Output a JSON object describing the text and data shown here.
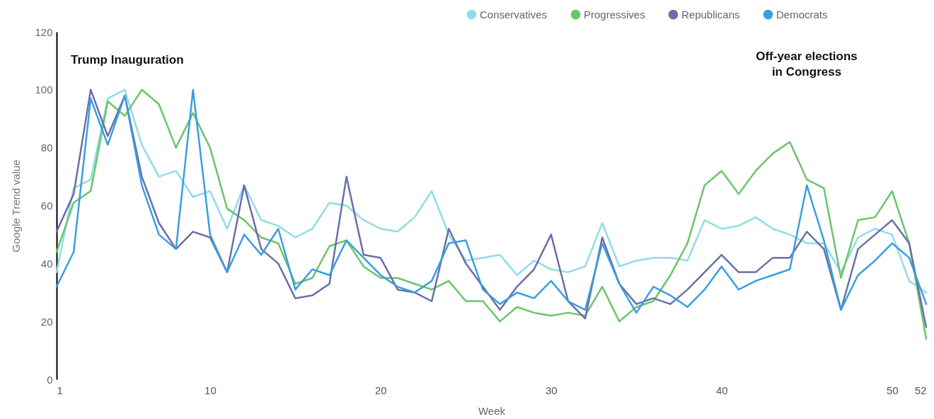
{
  "chart_data": {
    "type": "line",
    "xlabel": "Week",
    "ylabel": "Google Trend value",
    "x": [
      1,
      2,
      3,
      4,
      5,
      6,
      7,
      8,
      9,
      10,
      11,
      12,
      13,
      14,
      15,
      16,
      17,
      18,
      19,
      20,
      21,
      22,
      23,
      24,
      25,
      26,
      27,
      28,
      29,
      30,
      31,
      32,
      33,
      34,
      35,
      36,
      37,
      38,
      39,
      40,
      41,
      42,
      43,
      44,
      45,
      46,
      47,
      48,
      49,
      50,
      51,
      52
    ],
    "xlim": [
      1,
      52
    ],
    "xticks": [
      1,
      10,
      20,
      30,
      40,
      50,
      52
    ],
    "ylim": [
      0,
      120
    ],
    "yticks": [
      0,
      20,
      40,
      60,
      80,
      100,
      120
    ],
    "grid": false,
    "legend": "top right",
    "marker": "none",
    "line_style": "solid",
    "annotations": [
      "Trump Inauguration",
      "Off-year elections\nin Congress"
    ],
    "series": [
      {
        "name": "Conservatives",
        "color": "#8fdde6",
        "values": [
          37,
          66,
          69,
          97,
          100,
          81,
          70,
          72,
          63,
          65,
          52,
          67,
          55,
          53,
          49,
          52,
          61,
          60,
          55,
          52,
          51,
          56,
          65,
          50,
          41,
          42,
          43,
          36,
          41,
          38,
          37,
          39,
          54,
          39,
          41,
          42,
          42,
          41,
          55,
          52,
          53,
          56,
          52,
          50,
          47,
          47,
          37,
          49,
          52,
          50,
          34,
          30
        ]
      },
      {
        "name": "Progressives",
        "color": "#6cc46a",
        "values": [
          44,
          61,
          65,
          96,
          91,
          100,
          95,
          80,
          92,
          80,
          59,
          55,
          49,
          47,
          33,
          35,
          46,
          48,
          39,
          35,
          35,
          33,
          31,
          34,
          27,
          27,
          20,
          25,
          23,
          22,
          23,
          22,
          32,
          20,
          25,
          27,
          36,
          47,
          67,
          72,
          64,
          72,
          78,
          82,
          69,
          66,
          35,
          55,
          56,
          65,
          47,
          14
        ]
      },
      {
        "name": "Republicans",
        "color": "#6a6fa8",
        "values": [
          51,
          64,
          100,
          84,
          98,
          70,
          54,
          45,
          51,
          49,
          37,
          67,
          45,
          40,
          28,
          29,
          33,
          70,
          43,
          42,
          31,
          30,
          27,
          52,
          40,
          32,
          24,
          32,
          38,
          50,
          27,
          21,
          49,
          33,
          26,
          28,
          26,
          31,
          37,
          43,
          37,
          37,
          42,
          42,
          51,
          45,
          24,
          45,
          50,
          55,
          47,
          18
        ]
      },
      {
        "name": "Democrats",
        "color": "#3a9ee0",
        "values": [
          32,
          44,
          97,
          81,
          98,
          67,
          50,
          45,
          100,
          50,
          37,
          50,
          43,
          52,
          31,
          38,
          36,
          48,
          42,
          36,
          32,
          30,
          34,
          47,
          48,
          31,
          26,
          30,
          28,
          34,
          27,
          24,
          47,
          33,
          23,
          32,
          29,
          25,
          31,
          39,
          31,
          34,
          36,
          38,
          67,
          48,
          24,
          36,
          41,
          47,
          42,
          26
        ]
      }
    ]
  }
}
